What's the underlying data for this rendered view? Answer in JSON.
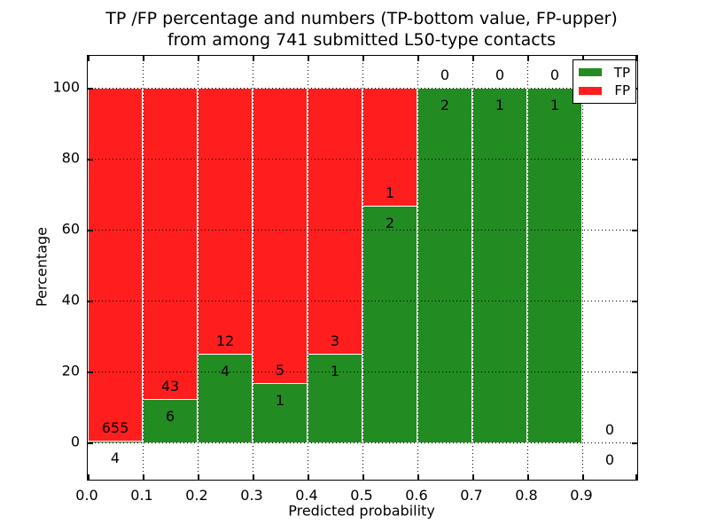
{
  "title": {
    "line1": "TP /FP percentage and numbers (TP-bottom value, FP-upper)",
    "line2": "from among 741 submitted L50-type contacts"
  },
  "chart_data": {
    "type": "bar",
    "stacked": true,
    "units": "percent",
    "title": "TP /FP percentage and numbers (TP-bottom value, FP-upper) from among 741 submitted L50-type contacts",
    "xlabel": "Predicted probability",
    "ylabel": "Percentage",
    "xlim": [
      0.0,
      1.0
    ],
    "ylim": [
      -10.5,
      109
    ],
    "x_tick_labels": [
      "0.0",
      "0.1",
      "0.2",
      "0.3",
      "0.4",
      "0.5",
      "0.6",
      "0.7",
      "0.8",
      "0.9"
    ],
    "y_tick_values": [
      0,
      20,
      40,
      60,
      80,
      100
    ],
    "grid": "dotted",
    "legend": {
      "position": "upper right",
      "entries": [
        {
          "label": "TP",
          "color": "#228b22"
        },
        {
          "label": "FP",
          "color": "#fe1e1e"
        }
      ]
    },
    "colors": {
      "tp": "#228b22",
      "fp": "#fe1e1e",
      "bar_edge": "#ffffff"
    },
    "total_submitted": 741,
    "bins": [
      {
        "x0": 0.0,
        "x1": 0.1,
        "tp": 4,
        "fp": 655,
        "tp_pct": 0.61,
        "empty": false
      },
      {
        "x0": 0.1,
        "x1": 0.2,
        "tp": 6,
        "fp": 43,
        "tp_pct": 12.24,
        "empty": false
      },
      {
        "x0": 0.2,
        "x1": 0.3,
        "tp": 4,
        "fp": 12,
        "tp_pct": 25.0,
        "empty": false
      },
      {
        "x0": 0.3,
        "x1": 0.4,
        "tp": 1,
        "fp": 5,
        "tp_pct": 16.67,
        "empty": false
      },
      {
        "x0": 0.4,
        "x1": 0.5,
        "tp": 1,
        "fp": 3,
        "tp_pct": 25.0,
        "empty": false
      },
      {
        "x0": 0.5,
        "x1": 0.6,
        "tp": 2,
        "fp": 1,
        "tp_pct": 66.67,
        "empty": false
      },
      {
        "x0": 0.6,
        "x1": 0.7,
        "tp": 2,
        "fp": 0,
        "tp_pct": 100.0,
        "empty": false
      },
      {
        "x0": 0.7,
        "x1": 0.8,
        "tp": 1,
        "fp": 0,
        "tp_pct": 100.0,
        "empty": false
      },
      {
        "x0": 0.8,
        "x1": 0.9,
        "tp": 1,
        "fp": 0,
        "tp_pct": 100.0,
        "empty": false
      },
      {
        "x0": 0.9,
        "x1": 1.0,
        "tp": 0,
        "fp": 0,
        "tp_pct": 0.0,
        "empty": true
      }
    ]
  }
}
